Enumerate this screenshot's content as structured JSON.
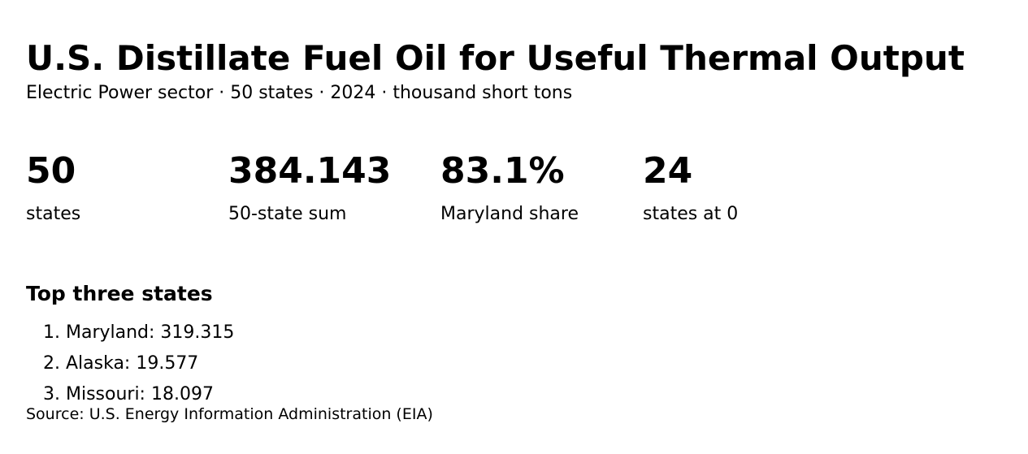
{
  "header": {
    "title": "U.S. Distillate Fuel Oil for Useful Thermal Output",
    "subtitle": "Electric Power sector · 50 states · 2024 · thousand short tons"
  },
  "stats": [
    {
      "value": "50",
      "label": "states"
    },
    {
      "value": "384.143",
      "label": "50-state sum"
    },
    {
      "value": "83.1%",
      "label": "Maryland share"
    },
    {
      "value": "24",
      "label": "states at 0"
    }
  ],
  "top_states": {
    "heading": "Top three states",
    "items": [
      "1. Maryland: 319.315",
      "2. Alaska: 19.577",
      "3. Missouri: 18.097"
    ]
  },
  "footer": {
    "source": "Source: U.S. Energy Information Administration (EIA)"
  }
}
